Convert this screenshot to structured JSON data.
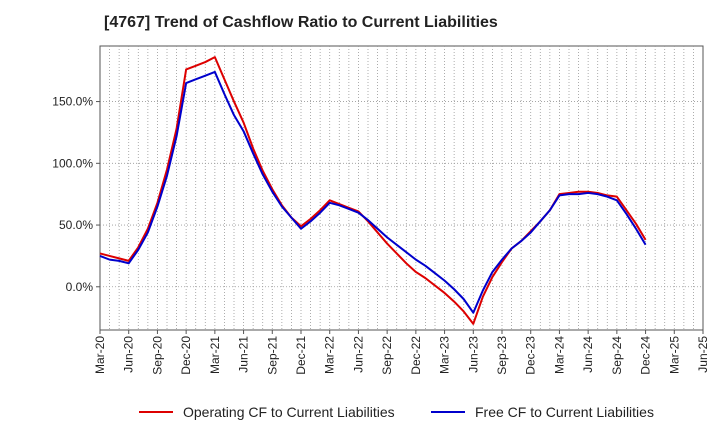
{
  "title": "[4767]  Trend of Cashflow Ratio to Current Liabilities",
  "chart_data": {
    "type": "line",
    "title": "[4767]  Trend of Cashflow Ratio to Current Liabilities",
    "xlabel": "",
    "ylabel": "",
    "x_tick_labels": [
      "Mar-20",
      "Jun-20",
      "Sep-20",
      "Dec-20",
      "Mar-21",
      "Jun-21",
      "Sep-21",
      "Dec-21",
      "Mar-22",
      "Jun-22",
      "Sep-22",
      "Dec-22",
      "Mar-23",
      "Jun-23",
      "Sep-23",
      "Dec-23",
      "Mar-24",
      "Jun-24",
      "Sep-24",
      "Dec-24",
      "Mar-25",
      "Jun-25"
    ],
    "y_ticks": [
      0,
      50,
      100,
      150
    ],
    "y_tick_labels": [
      "0.0%",
      "50.0%",
      "100.0%",
      "150.0%"
    ],
    "ylim": [
      -35,
      195
    ],
    "grid": true,
    "legend_position": "bottom",
    "series": [
      {
        "name": "Operating CF to Current Liabilities",
        "color": "#dd0000",
        "x": [
          "Mar-20",
          "Apr-20",
          "May-20",
          "Jun-20",
          "Jul-20",
          "Aug-20",
          "Sep-20",
          "Oct-20",
          "Nov-20",
          "Dec-20",
          "Jan-21",
          "Feb-21",
          "Mar-21",
          "Apr-21",
          "May-21",
          "Jun-21",
          "Jul-21",
          "Aug-21",
          "Sep-21",
          "Oct-21",
          "Nov-21",
          "Dec-21",
          "Jan-22",
          "Feb-22",
          "Mar-22",
          "Apr-22",
          "May-22",
          "Jun-22",
          "Jul-22",
          "Aug-22",
          "Sep-22",
          "Oct-22",
          "Nov-22",
          "Dec-22",
          "Jan-23",
          "Feb-23",
          "Mar-23",
          "Apr-23",
          "May-23",
          "Jun-23",
          "Jul-23",
          "Aug-23",
          "Sep-23",
          "Oct-23",
          "Nov-23",
          "Dec-23",
          "Jan-24",
          "Feb-24",
          "Mar-24",
          "Apr-24",
          "May-24",
          "Jun-24",
          "Jul-24",
          "Aug-24",
          "Sep-24",
          "Oct-24",
          "Nov-24",
          "Dec-24"
        ],
        "values": [
          27,
          25,
          23,
          21,
          32,
          47,
          68,
          95,
          128,
          176,
          179,
          182,
          186,
          168,
          150,
          133,
          112,
          94,
          79,
          66,
          56,
          49,
          55,
          62,
          70,
          67,
          64,
          61,
          53,
          44,
          35,
          27,
          19,
          12,
          7,
          1,
          -5,
          -12,
          -20,
          -30,
          -8,
          8,
          20,
          31,
          37,
          45,
          53,
          62,
          75,
          76,
          77,
          77,
          76,
          74,
          73,
          62,
          51,
          38
        ]
      },
      {
        "name": "Free CF to Current Liabilities",
        "color": "#0000cc",
        "x": [
          "Mar-20",
          "Apr-20",
          "May-20",
          "Jun-20",
          "Jul-20",
          "Aug-20",
          "Sep-20",
          "Oct-20",
          "Nov-20",
          "Dec-20",
          "Jan-21",
          "Feb-21",
          "Mar-21",
          "Apr-21",
          "May-21",
          "Jun-21",
          "Jul-21",
          "Aug-21",
          "Sep-21",
          "Oct-21",
          "Nov-21",
          "Dec-21",
          "Jan-22",
          "Feb-22",
          "Mar-22",
          "Apr-22",
          "May-22",
          "Jun-22",
          "Jul-22",
          "Aug-22",
          "Sep-22",
          "Oct-22",
          "Nov-22",
          "Dec-22",
          "Jan-23",
          "Feb-23",
          "Mar-23",
          "Apr-23",
          "May-23",
          "Jun-23",
          "Jul-23",
          "Aug-23",
          "Sep-23",
          "Oct-23",
          "Nov-23",
          "Dec-23",
          "Jan-24",
          "Feb-24",
          "Mar-24",
          "Apr-24",
          "May-24",
          "Jun-24",
          "Jul-24",
          "Aug-24",
          "Sep-24",
          "Oct-24",
          "Nov-24",
          "Dec-24"
        ],
        "values": [
          25,
          22,
          21,
          19,
          30,
          44,
          65,
          90,
          122,
          165,
          168,
          171,
          174,
          156,
          139,
          126,
          108,
          91,
          77,
          65,
          56,
          47,
          53,
          60,
          68,
          66,
          63,
          60,
          54,
          47,
          40,
          34,
          28,
          22,
          17,
          11,
          5,
          -2,
          -10,
          -21,
          -3,
          12,
          22,
          31,
          37,
          44,
          53,
          62,
          74,
          75,
          75,
          76,
          75,
          73,
          70,
          59,
          47,
          34
        ]
      }
    ]
  },
  "legend": [
    {
      "label": "Operating CF to Current Liabilities",
      "color": "#dd0000"
    },
    {
      "label": "Free CF to Current Liabilities",
      "color": "#0000cc"
    }
  ]
}
